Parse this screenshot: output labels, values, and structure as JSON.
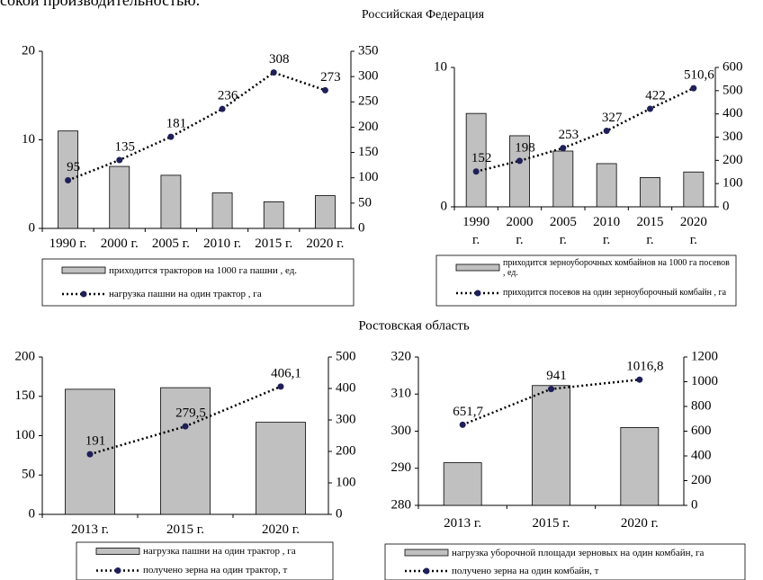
{
  "header_text": "сокой производительностью.",
  "section_titles": [
    "Российская Федерация",
    "Ростовская область"
  ],
  "chart_data": [
    {
      "type": "combo",
      "categories": [
        "1990 г.",
        "2000 г.",
        "2005 г.",
        "2010 г.",
        "2015 г.",
        "2020 г."
      ],
      "ylim": [
        0,
        20
      ],
      "yticks": [
        0,
        10,
        20
      ],
      "y2lim": [
        0,
        350
      ],
      "y2ticks": [
        0,
        50,
        100,
        150,
        200,
        250,
        300,
        350
      ],
      "series": [
        {
          "name": "приходится тракторов на 1000 га пашни , ед.",
          "type": "bar",
          "color": "#c0c0c0",
          "values": [
            11,
            7,
            6,
            4,
            3,
            3.7
          ]
        },
        {
          "name": "нагрузка пашни на один трактор , га",
          "type": "line",
          "axis": "y2",
          "color": "#1f1f5a",
          "values": [
            95,
            135,
            181,
            236,
            308,
            273
          ]
        }
      ]
    },
    {
      "type": "combo",
      "categories": [
        "1990 г.",
        "2000 г.",
        "2005 г.",
        "2010 г.",
        "2015 г.",
        "2020 г."
      ],
      "ylim": [
        0,
        10
      ],
      "yticks": [
        0,
        10
      ],
      "y2lim": [
        0,
        600
      ],
      "y2ticks": [
        0,
        100,
        200,
        300,
        400,
        500,
        600
      ],
      "series": [
        {
          "name": "приходится зерноуборочных комбайнов на 1000 га посевов , ед.",
          "type": "bar",
          "color": "#c0c0c0",
          "values": [
            6.7,
            5.1,
            4.0,
            3.1,
            2.1,
            2.5
          ]
        },
        {
          "name": "приходится посевов на один зерноуборочный комбайн , га",
          "type": "line",
          "axis": "y2",
          "color": "#1f1f5a",
          "values": [
            152,
            198,
            253,
            327,
            422,
            510.6
          ],
          "value_labels": [
            "152",
            "198",
            "253",
            "327",
            "422",
            "510,6"
          ]
        }
      ]
    },
    {
      "type": "combo",
      "categories": [
        "2013 г.",
        "2015 г.",
        "2020 г."
      ],
      "ylim": [
        0,
        200
      ],
      "yticks": [
        0,
        50,
        100,
        150,
        200
      ],
      "y2lim": [
        0,
        500
      ],
      "y2ticks": [
        0,
        100,
        200,
        300,
        400,
        500
      ],
      "series": [
        {
          "name": "нагрузка пашни на один трактор , га",
          "type": "bar",
          "color": "#c0c0c0",
          "values": [
            159,
            161,
            117
          ]
        },
        {
          "name": "получено зерна на один трактор, т",
          "type": "line",
          "axis": "y2",
          "color": "#1f1f5a",
          "values": [
            191,
            279.5,
            406.1
          ],
          "value_labels": [
            "191",
            "279,5",
            "406,1"
          ]
        }
      ]
    },
    {
      "type": "combo",
      "categories": [
        "2013 г.",
        "2015 г.",
        "2020 г."
      ],
      "ylim": [
        280,
        320
      ],
      "yticks": [
        280,
        290,
        300,
        310,
        320
      ],
      "y2lim": [
        0,
        1200
      ],
      "y2ticks": [
        0,
        200,
        400,
        600,
        800,
        1000,
        1200
      ],
      "series": [
        {
          "name": "нагрузка уборочной площади зерновых на один комбайн, га",
          "type": "bar",
          "color": "#c0c0c0",
          "values": [
            291.5,
            312.3,
            301
          ]
        },
        {
          "name": "получено зерна на один комбайн, т",
          "type": "line",
          "axis": "y2",
          "color": "#1f1f5a",
          "values": [
            651.7,
            941,
            1016.8
          ],
          "value_labels": [
            "651,7",
            "941",
            "1016,8"
          ]
        }
      ]
    }
  ]
}
